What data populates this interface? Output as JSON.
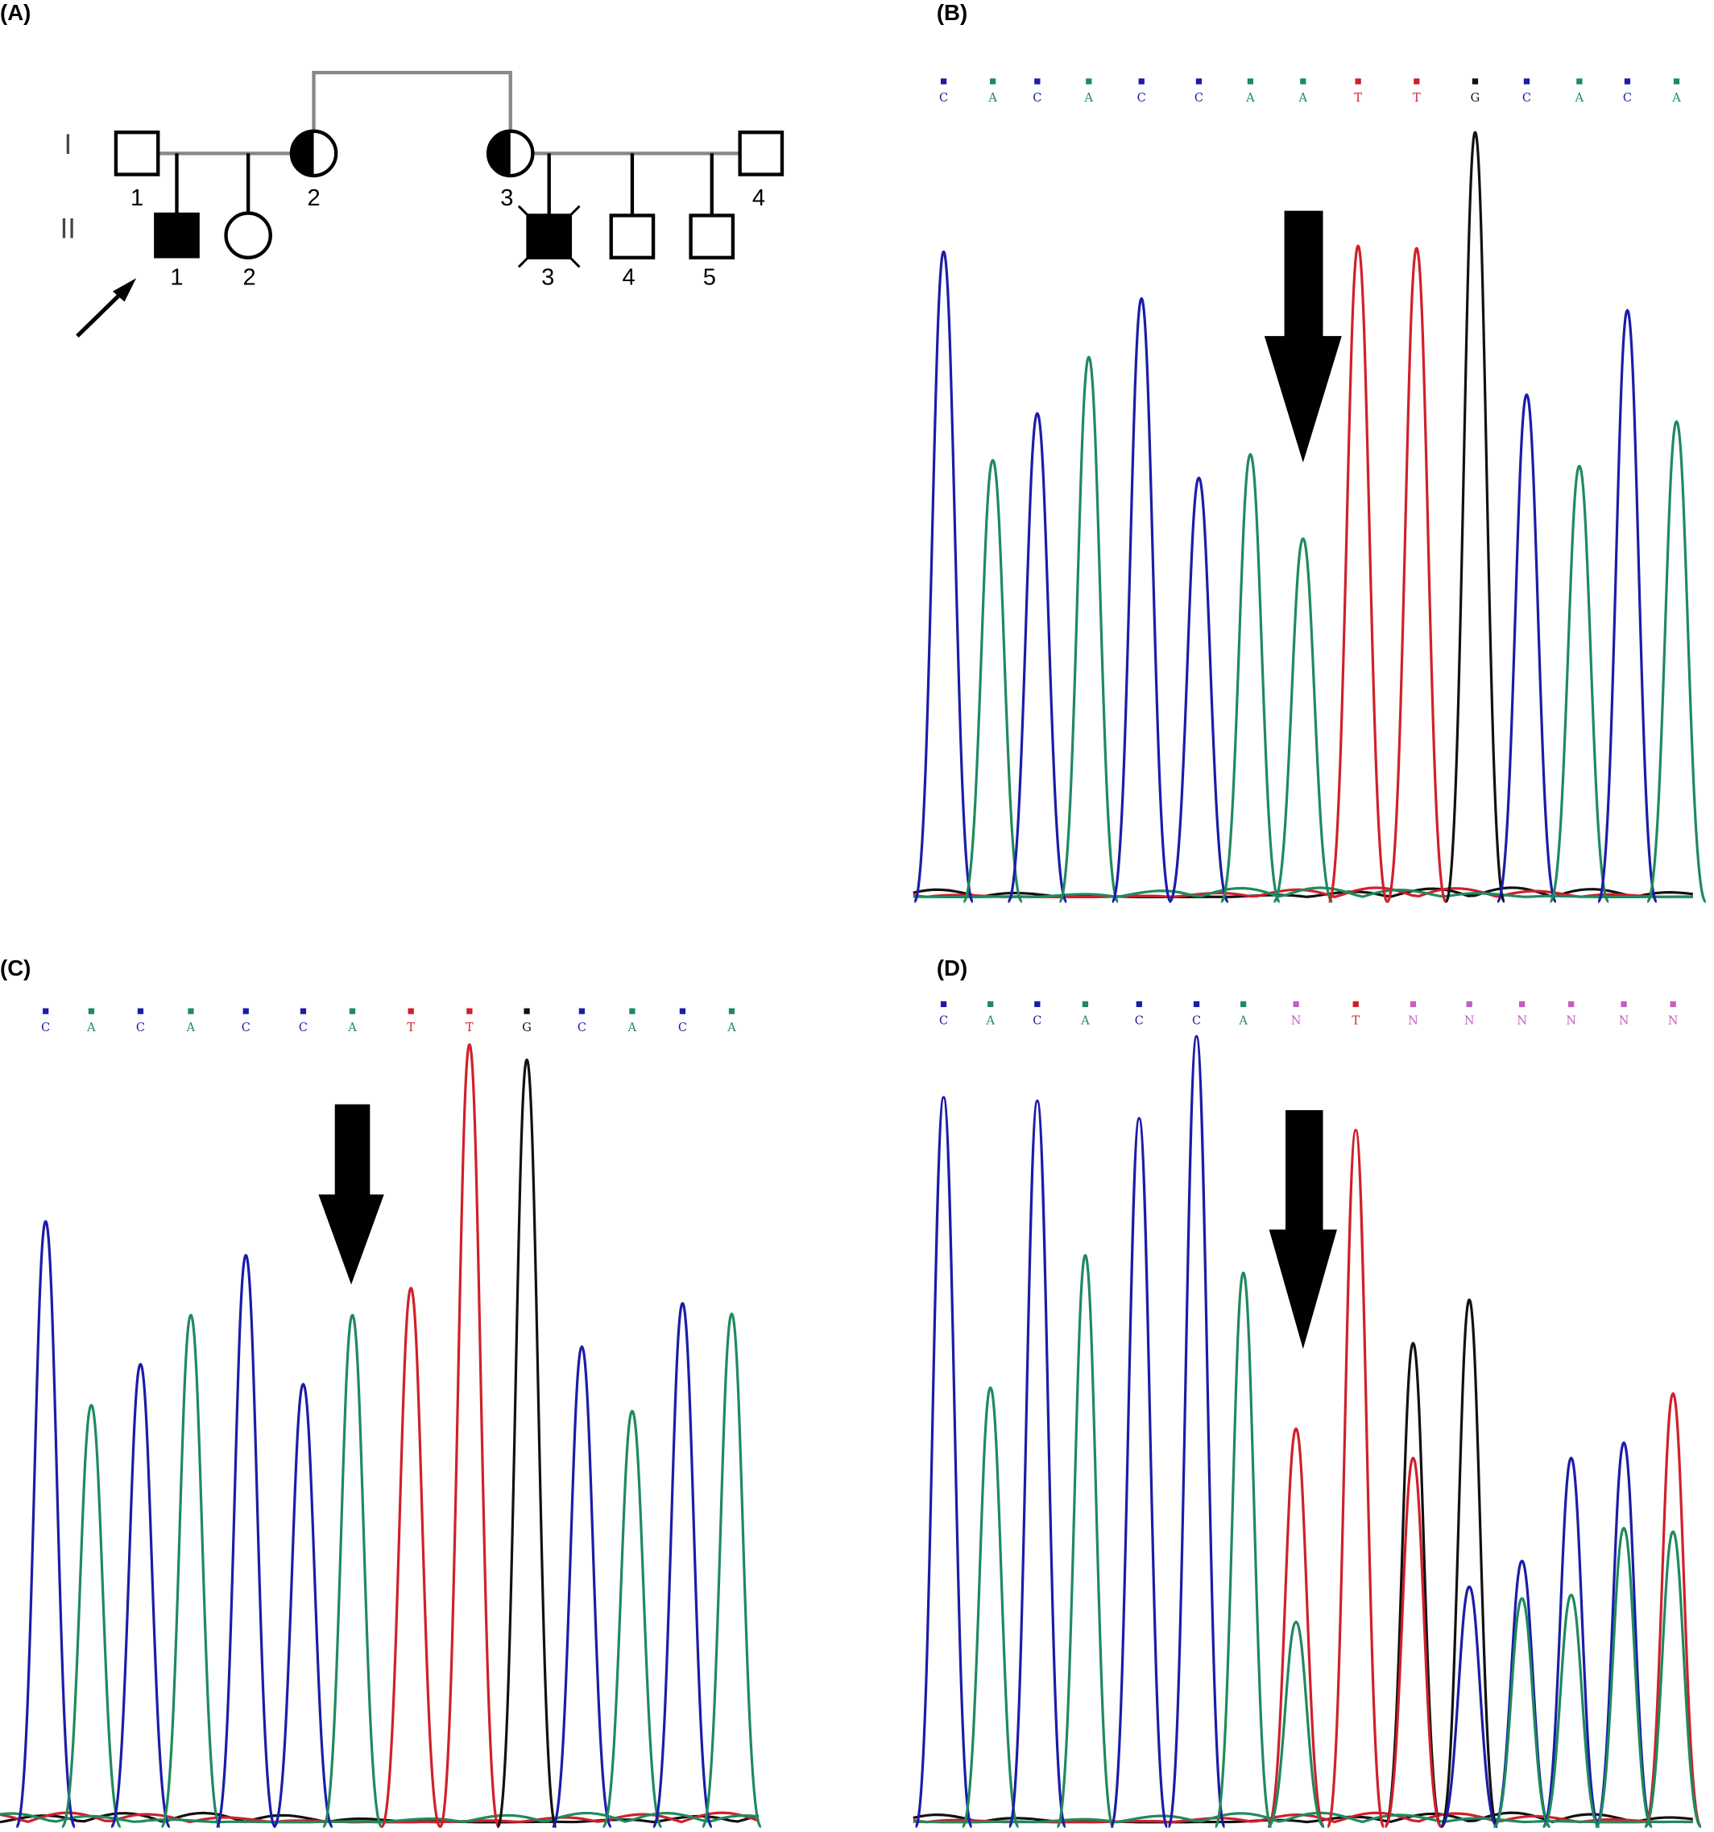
{
  "figure": {
    "panel_labels": [
      "(A)",
      "(B)",
      "(C)",
      "(D)"
    ],
    "pedigree": {
      "generations": [
        "I",
        "II"
      ],
      "individuals": {
        "I": [
          "1",
          "2",
          "3",
          "4"
        ],
        "II": [
          "1",
          "2",
          "3",
          "4",
          "5"
        ]
      }
    },
    "chromatograms": [
      {
        "bases": [
          "C",
          "A",
          "C",
          "A",
          "C",
          "C",
          "A",
          "A",
          "T",
          "T",
          "G",
          "C",
          "A",
          "C",
          "A"
        ]
      },
      {
        "bases": [
          "C",
          "A",
          "C",
          "A",
          "C",
          "C",
          "A",
          "T",
          "T",
          "G",
          "C",
          "A",
          "C",
          "A"
        ]
      },
      {
        "bases": [
          "C",
          "A",
          "C",
          "A",
          "C",
          "C",
          "A",
          "N",
          "T",
          "N",
          "N",
          "N",
          "N",
          "N",
          "N"
        ]
      }
    ]
  }
}
